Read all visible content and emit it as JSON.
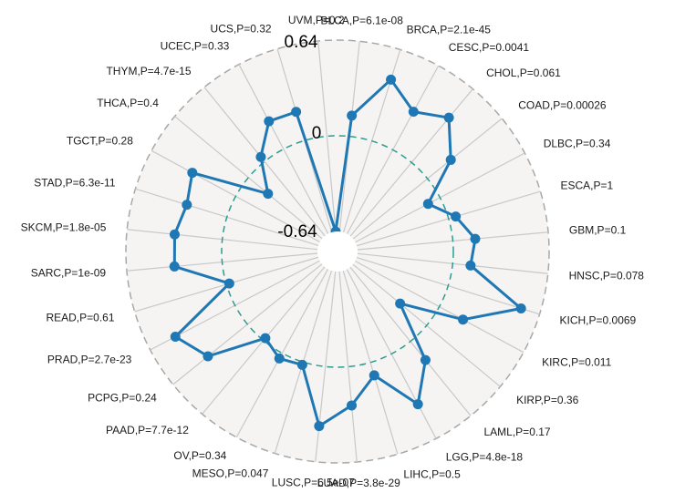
{
  "chart_data": {
    "type": "radar",
    "ylim": [
      -0.64,
      0.64
    ],
    "radial_labels": [
      "0.64",
      "0",
      "-0.64"
    ],
    "reference_circle": 0,
    "categories": [
      "BLCA,P=6.1e-08",
      "BRCA,P=2.1e-45",
      "CESC,P=0.0041",
      "CHOL,P=0.061",
      "COAD,P=0.00026",
      "DLBC,P=0.34",
      "ESCA,P=1",
      "GBM,P=0.1",
      "HNSC,P=0.078",
      "KICH,P=0.0069",
      "KIRC,P=0.011",
      "KIRP,P=0.36",
      "LAML,P=0.17",
      "LGG,P=4.8e-18",
      "LIHC,P=0.5",
      "LUAD,P=3.8e-29",
      "LUSC,P=6.5e-07",
      "MESO,P=0.047",
      "OV,P=0.34",
      "PAAD,P=7.7e-12",
      "PCPG,P=0.24",
      "PRAD,P=2.7e-23",
      "READ,P=0.61",
      "SARC,P=1e-09",
      "SKCM,P=1.8e-05",
      "STAD,P=6.3e-11",
      "TGCT,P=0.28",
      "THCA,P=0.4",
      "THYM,P=4.7e-15",
      "UCEC,P=0.33",
      "UCS,P=0.32",
      "UVM,P=0.2"
    ],
    "values": [
      0.14,
      0.43,
      0.29,
      0.39,
      0.2,
      -0.09,
      0.05,
      0.15,
      0.12,
      0.51,
      0.18,
      -0.23,
      0.16,
      0.38,
      0.09,
      0.26,
      0.4,
      0.02,
      0.04,
      -0.02,
      0.34,
      0.45,
      -0.02,
      0.32,
      0.32,
      0.28,
      0.33,
      -0.17,
      0.04,
      0.21,
      0.2,
      -0.64
    ],
    "colors": {
      "line": "#1f77b4",
      "reference": "#2a9d8f",
      "panel": "#f5f4f3",
      "spoke": "#c8c8c8",
      "outer": "#a8a8a8"
    }
  }
}
